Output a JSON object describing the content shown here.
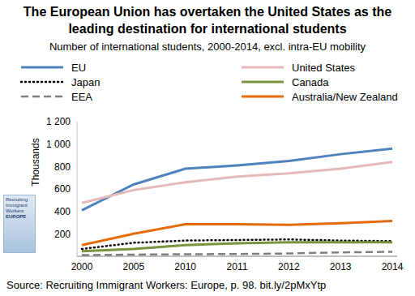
{
  "chart_data": {
    "type": "line",
    "title": "The European Union has overtaken the United States as the leading destination for international students",
    "subtitle": "Number of international students, 2000-2014, excl. intra-EU mobility",
    "y_label": "Thousands",
    "source": "Source: Recruiting Immigrant Workers: Europe, p. 98. bit.ly/2pMxYtp",
    "cover": [
      "Recruiting Immigrant Workers",
      "EUROPE"
    ],
    "categories": [
      "2000",
      "2005",
      "2010",
      "2011",
      "2012",
      "2013",
      "2014"
    ],
    "series": [
      {
        "name": "EU",
        "color": "#4f81bd",
        "line_style": "solid",
        "values": [
          410,
          640,
          780,
          810,
          850,
          910,
          960
        ]
      },
      {
        "name": "United States",
        "color": "#e6b9b8",
        "line_style": "solid",
        "values": [
          475,
          590,
          660,
          710,
          740,
          780,
          840
        ]
      },
      {
        "name": "Japan",
        "color": "#000000",
        "line_style": "dotted",
        "values": [
          65,
          120,
          140,
          145,
          150,
          140,
          135
        ]
      },
      {
        "name": "Canada",
        "color": "#77933c",
        "line_style": "solid",
        "values": [
          45,
          65,
          100,
          115,
          125,
          125,
          125
        ]
      },
      {
        "name": "EEA",
        "color": "#7f7f7f",
        "line_style": "dashed",
        "values": [
          10,
          15,
          18,
          20,
          25,
          35,
          40
        ]
      },
      {
        "name": "Australia/New Zealand",
        "color": "#e46c0a",
        "line_style": "solid",
        "values": [
          100,
          200,
          285,
          285,
          280,
          295,
          315
        ]
      }
    ],
    "ylim": [
      0,
      1200
    ],
    "yticks": [
      200,
      400,
      600,
      800,
      {
        "value": 1000,
        "label": "1 000"
      },
      {
        "value": 1200,
        "label": "1 200"
      }
    ],
    "grid": false,
    "legend": "top"
  }
}
